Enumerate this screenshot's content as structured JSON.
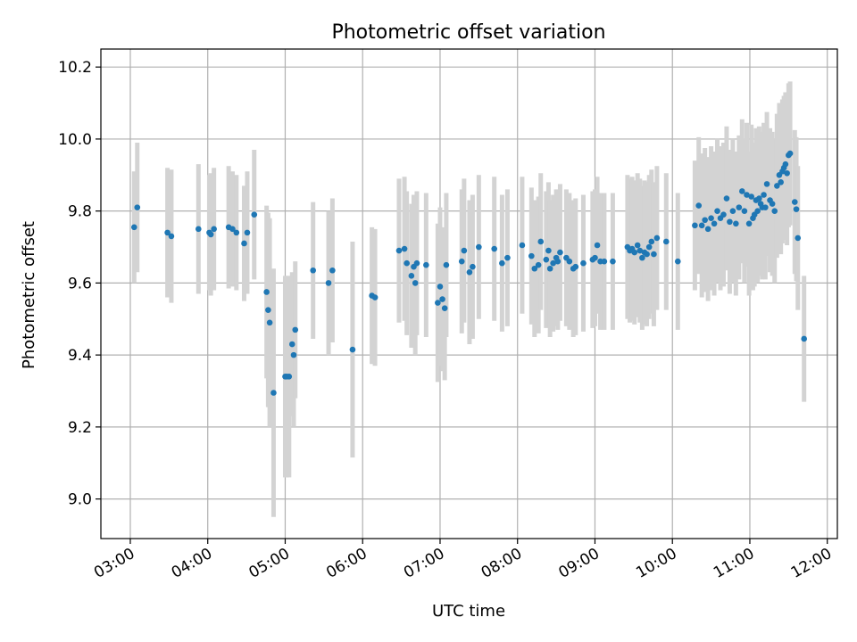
{
  "chart_data": {
    "type": "scatter",
    "title": "Photometric offset variation",
    "xlabel": "UTC time",
    "ylabel": "Photometric offset",
    "x_unit": "hours UTC",
    "xlim": [
      2.62,
      12.13
    ],
    "ylim": [
      8.89,
      10.25
    ],
    "x_ticks": [
      {
        "value": 3,
        "label": "03:00"
      },
      {
        "value": 4,
        "label": "04:00"
      },
      {
        "value": 5,
        "label": "05:00"
      },
      {
        "value": 6,
        "label": "06:00"
      },
      {
        "value": 7,
        "label": "07:00"
      },
      {
        "value": 8,
        "label": "08:00"
      },
      {
        "value": 9,
        "label": "09:00"
      },
      {
        "value": 10,
        "label": "10:00"
      },
      {
        "value": 11,
        "label": "11:00"
      },
      {
        "value": 12,
        "label": "12:00"
      }
    ],
    "y_ticks": [
      {
        "value": 9.0,
        "label": "9.0"
      },
      {
        "value": 9.2,
        "label": "9.2"
      },
      {
        "value": 9.4,
        "label": "9.4"
      },
      {
        "value": 9.6,
        "label": "9.6"
      },
      {
        "value": 9.8,
        "label": "9.8"
      },
      {
        "value": 10.0,
        "label": "10.0"
      },
      {
        "value": 10.2,
        "label": "10.2"
      }
    ],
    "grid": true,
    "point_color": "#1f77b4",
    "errorbar_color": "#d3d3d3",
    "points": [
      [
        3.05,
        9.755,
        0.155
      ],
      [
        3.09,
        9.81,
        0.18
      ],
      [
        3.48,
        9.74,
        0.18
      ],
      [
        3.53,
        9.73,
        0.185
      ],
      [
        3.88,
        9.75,
        0.18
      ],
      [
        4.02,
        9.74,
        0.16
      ],
      [
        4.04,
        9.735,
        0.17
      ],
      [
        4.08,
        9.75,
        0.17
      ],
      [
        4.27,
        9.755,
        0.17
      ],
      [
        4.32,
        9.75,
        0.16
      ],
      [
        4.37,
        9.74,
        0.16
      ],
      [
        4.47,
        9.71,
        0.16
      ],
      [
        4.51,
        9.74,
        0.17
      ],
      [
        4.6,
        9.79,
        0.18
      ],
      [
        4.76,
        9.575,
        0.24
      ],
      [
        4.78,
        9.525,
        0.27
      ],
      [
        4.8,
        9.49,
        0.29
      ],
      [
        4.85,
        9.295,
        0.345
      ],
      [
        5.0,
        9.34,
        0.28
      ],
      [
        5.02,
        9.34,
        0.28
      ],
      [
        5.05,
        9.34,
        0.28
      ],
      [
        5.09,
        9.43,
        0.2
      ],
      [
        5.11,
        9.4,
        0.2
      ],
      [
        5.13,
        9.47,
        0.19
      ],
      [
        5.36,
        9.635,
        0.19
      ],
      [
        5.56,
        9.6,
        0.2
      ],
      [
        5.61,
        9.635,
        0.2
      ],
      [
        5.87,
        9.415,
        0.3
      ],
      [
        6.12,
        9.565,
        0.19
      ],
      [
        6.16,
        9.56,
        0.19
      ],
      [
        6.47,
        9.69,
        0.2
      ],
      [
        6.54,
        9.695,
        0.2
      ],
      [
        6.57,
        9.655,
        0.2
      ],
      [
        6.63,
        9.62,
        0.2
      ],
      [
        6.66,
        9.645,
        0.2
      ],
      [
        6.68,
        9.6,
        0.2
      ],
      [
        6.7,
        9.655,
        0.2
      ],
      [
        6.82,
        9.65,
        0.2
      ],
      [
        6.97,
        9.545,
        0.22
      ],
      [
        7.0,
        9.59,
        0.22
      ],
      [
        7.03,
        9.555,
        0.2
      ],
      [
        7.06,
        9.53,
        0.2
      ],
      [
        7.08,
        9.65,
        0.2
      ],
      [
        7.28,
        9.66,
        0.2
      ],
      [
        7.31,
        9.69,
        0.2
      ],
      [
        7.38,
        9.63,
        0.2
      ],
      [
        7.42,
        9.645,
        0.2
      ],
      [
        7.5,
        9.7,
        0.2
      ],
      [
        7.7,
        9.695,
        0.2
      ],
      [
        7.8,
        9.655,
        0.19
      ],
      [
        7.87,
        9.67,
        0.19
      ],
      [
        8.06,
        9.705,
        0.19
      ],
      [
        8.18,
        9.675,
        0.19
      ],
      [
        8.22,
        9.64,
        0.19
      ],
      [
        8.27,
        9.65,
        0.19
      ],
      [
        8.3,
        9.715,
        0.19
      ],
      [
        8.37,
        9.665,
        0.19
      ],
      [
        8.4,
        9.69,
        0.19
      ],
      [
        8.42,
        9.64,
        0.19
      ],
      [
        8.46,
        9.655,
        0.19
      ],
      [
        8.5,
        9.67,
        0.19
      ],
      [
        8.52,
        9.66,
        0.19
      ],
      [
        8.55,
        9.685,
        0.19
      ],
      [
        8.63,
        9.67,
        0.19
      ],
      [
        8.67,
        9.66,
        0.19
      ],
      [
        8.72,
        9.64,
        0.19
      ],
      [
        8.75,
        9.645,
        0.19
      ],
      [
        8.85,
        9.655,
        0.19
      ],
      [
        8.97,
        9.665,
        0.19
      ],
      [
        9.0,
        9.67,
        0.19
      ],
      [
        9.03,
        9.705,
        0.19
      ],
      [
        9.07,
        9.66,
        0.19
      ],
      [
        9.12,
        9.66,
        0.19
      ],
      [
        9.23,
        9.66,
        0.19
      ],
      [
        9.42,
        9.7,
        0.2
      ],
      [
        9.45,
        9.69,
        0.2
      ],
      [
        9.48,
        9.695,
        0.2
      ],
      [
        9.51,
        9.685,
        0.2
      ],
      [
        9.55,
        9.705,
        0.2
      ],
      [
        9.58,
        9.69,
        0.2
      ],
      [
        9.61,
        9.67,
        0.2
      ],
      [
        9.64,
        9.685,
        0.2
      ],
      [
        9.67,
        9.68,
        0.2
      ],
      [
        9.7,
        9.7,
        0.2
      ],
      [
        9.73,
        9.715,
        0.2
      ],
      [
        9.76,
        9.68,
        0.2
      ],
      [
        9.8,
        9.725,
        0.2
      ],
      [
        9.92,
        9.715,
        0.19
      ],
      [
        10.07,
        9.66,
        0.19
      ],
      [
        10.29,
        9.76,
        0.18
      ],
      [
        10.34,
        9.815,
        0.19
      ],
      [
        10.38,
        9.76,
        0.2
      ],
      [
        10.42,
        9.775,
        0.2
      ],
      [
        10.46,
        9.75,
        0.2
      ],
      [
        10.5,
        9.78,
        0.2
      ],
      [
        10.54,
        9.765,
        0.2
      ],
      [
        10.58,
        9.8,
        0.2
      ],
      [
        10.62,
        9.78,
        0.2
      ],
      [
        10.66,
        9.79,
        0.2
      ],
      [
        10.7,
        9.835,
        0.2
      ],
      [
        10.74,
        9.77,
        0.2
      ],
      [
        10.78,
        9.8,
        0.2
      ],
      [
        10.82,
        9.765,
        0.2
      ],
      [
        10.86,
        9.81,
        0.2
      ],
      [
        10.9,
        9.855,
        0.2
      ],
      [
        10.93,
        9.8,
        0.2
      ],
      [
        10.96,
        9.845,
        0.2
      ],
      [
        10.99,
        9.765,
        0.2
      ],
      [
        11.02,
        9.84,
        0.2
      ],
      [
        11.04,
        9.78,
        0.2
      ],
      [
        11.06,
        9.79,
        0.2
      ],
      [
        11.08,
        9.83,
        0.2
      ],
      [
        11.1,
        9.8,
        0.2
      ],
      [
        11.12,
        9.835,
        0.2
      ],
      [
        11.14,
        9.82,
        0.2
      ],
      [
        11.16,
        9.81,
        0.2
      ],
      [
        11.18,
        9.845,
        0.2
      ],
      [
        11.2,
        9.81,
        0.2
      ],
      [
        11.22,
        9.875,
        0.2
      ],
      [
        11.26,
        9.83,
        0.2
      ],
      [
        11.29,
        9.82,
        0.2
      ],
      [
        11.32,
        9.8,
        0.2
      ],
      [
        11.35,
        9.87,
        0.2
      ],
      [
        11.38,
        9.9,
        0.2
      ],
      [
        11.4,
        9.88,
        0.2
      ],
      [
        11.42,
        9.91,
        0.2
      ],
      [
        11.44,
        9.92,
        0.2
      ],
      [
        11.46,
        9.93,
        0.2
      ],
      [
        11.48,
        9.905,
        0.2
      ],
      [
        11.5,
        9.955,
        0.2
      ],
      [
        11.52,
        9.96,
        0.2
      ],
      [
        11.58,
        9.825,
        0.2
      ],
      [
        11.6,
        9.805,
        0.2
      ],
      [
        11.62,
        9.725,
        0.2
      ],
      [
        11.7,
        9.445,
        0.175
      ]
    ]
  }
}
